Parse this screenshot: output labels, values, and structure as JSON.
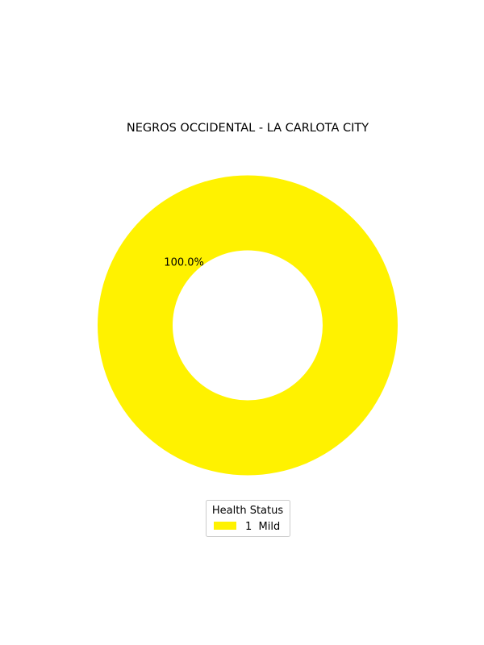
{
  "chart_data": {
    "type": "pie",
    "title": "NEGROS OCCIDENTAL - LA CARLOTA CITY",
    "donut": true,
    "categories": [
      "1  Mild"
    ],
    "values": [
      1
    ],
    "percent_labels": [
      "100.0%"
    ],
    "colors": [
      "#fff200"
    ],
    "legend": {
      "title": "Health Status",
      "placement": "bottom-center",
      "entries": [
        "1  Mild"
      ]
    }
  }
}
